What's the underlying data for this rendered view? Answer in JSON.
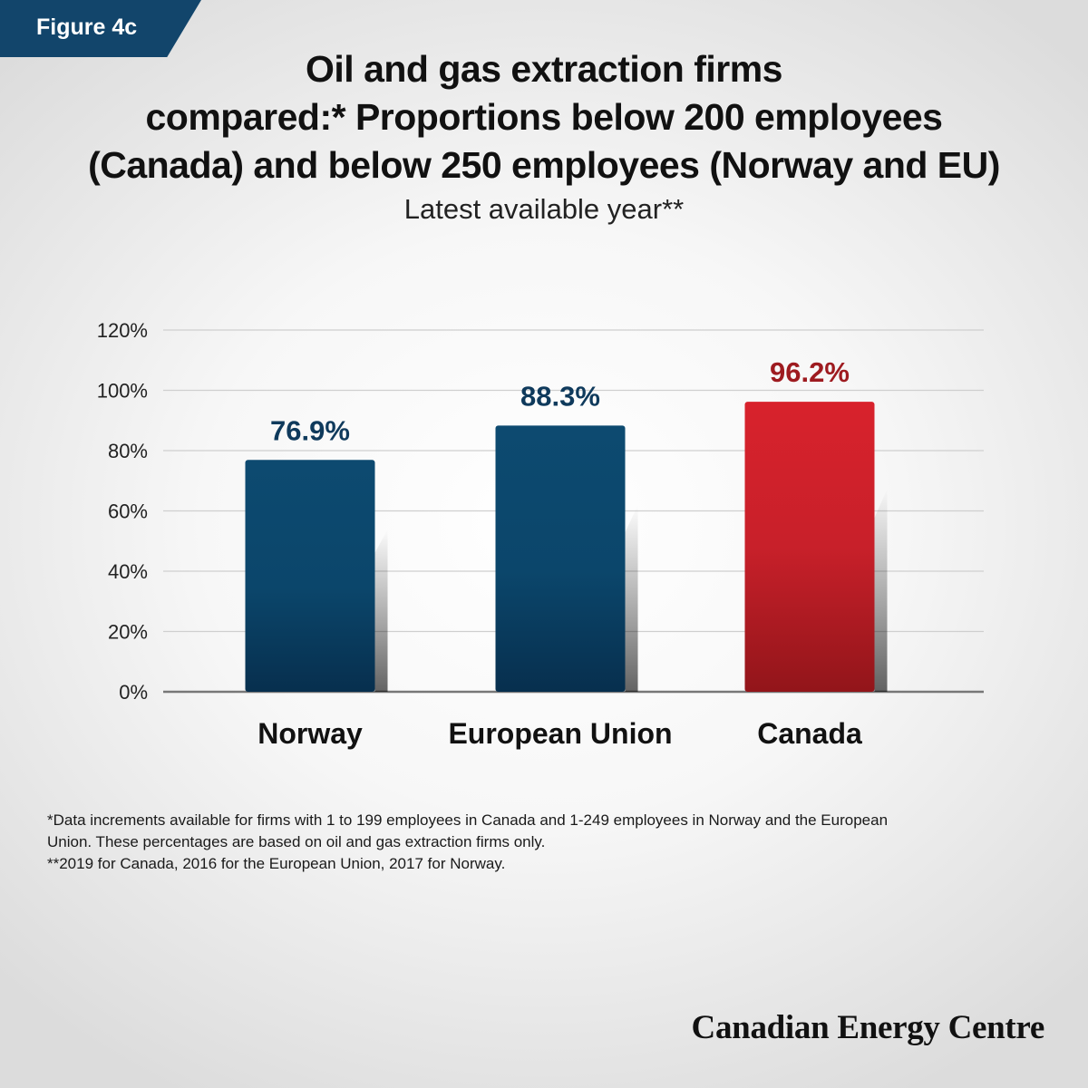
{
  "figure_label": "Figure 4c",
  "title_lines": [
    "Oil and gas extraction firms",
    "compared:* Proportions below 200 employees",
    "(Canada) and below 250 employees (Norway and EU)"
  ],
  "subtitle": "Latest available year**",
  "chart_data": {
    "type": "bar",
    "categories": [
      "Norway",
      "European Union",
      "Canada"
    ],
    "values": [
      76.9,
      88.3,
      96.2
    ],
    "data_labels": [
      "76.9%",
      "88.3%",
      "96.2%"
    ],
    "bar_colors": [
      "#0d4a70",
      "#0d4a70",
      "#d0232b"
    ],
    "label_colors": [
      "#0f3a5c",
      "#0f3a5c",
      "#9e1b20"
    ],
    "ylim": [
      0,
      120
    ],
    "yticks": [
      0,
      20,
      40,
      60,
      80,
      100,
      120
    ],
    "ytick_labels": [
      "0%",
      "20%",
      "40%",
      "60%",
      "80%",
      "100%",
      "120%"
    ],
    "grid": true,
    "xlabel": "",
    "ylabel": ""
  },
  "footnotes": [
    "*Data increments available for firms with 1 to 199 employees in Canada and 1-249 employees in Norway and the European Union. These percentages are based on oil and gas extraction firms only.",
    "**2019 for Canada, 2016 for the European Union, 2017 for Norway."
  ],
  "brand": "Canadian Energy Centre"
}
